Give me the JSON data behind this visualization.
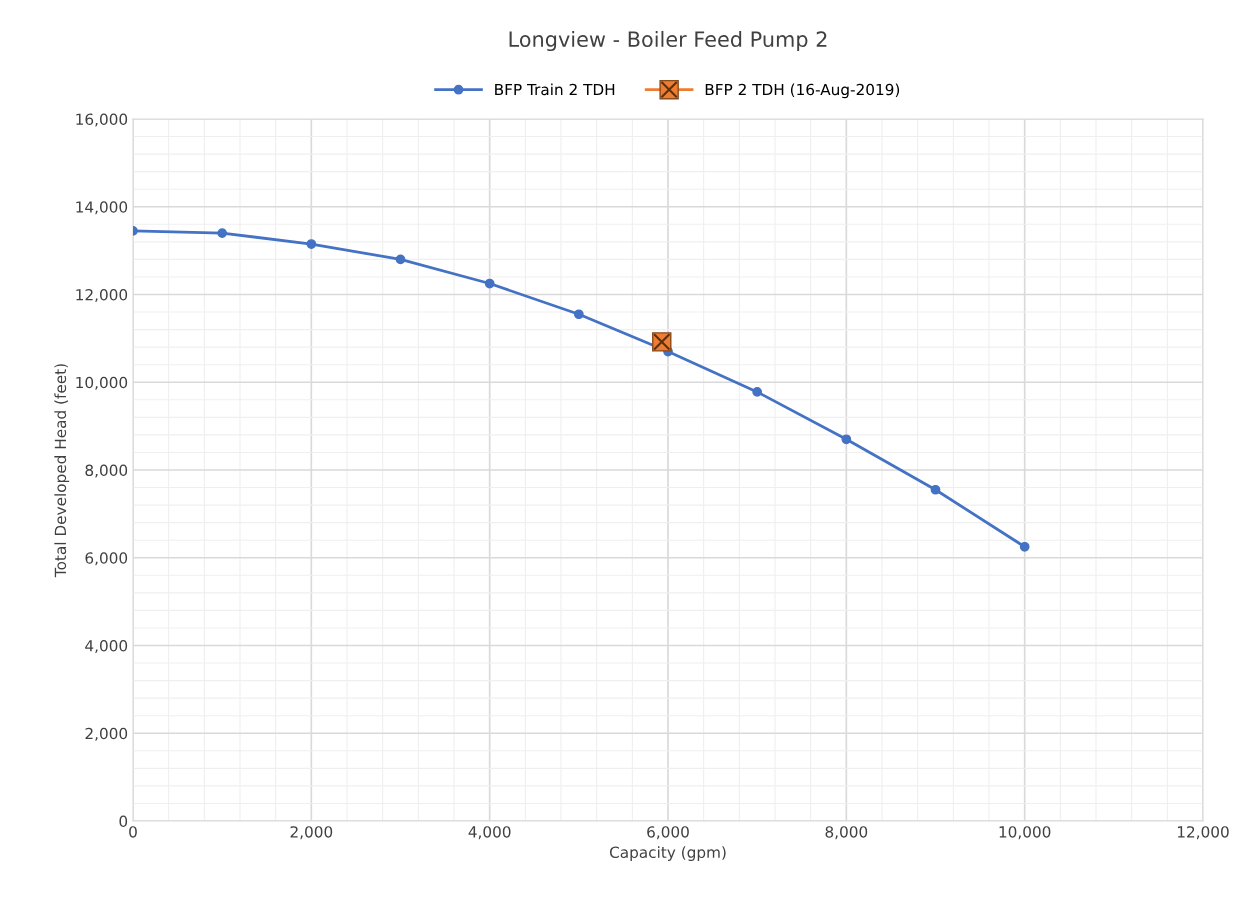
{
  "chart_data": {
    "type": "line",
    "title": "Longview - Boiler Feed Pump 2",
    "xlabel": "Capacity (gpm)",
    "ylabel": "Total Developed Head (feet)",
    "series": [
      {
        "name": "BFP Train 2 TDH",
        "color": "#4472c4",
        "marker": "circle",
        "x": [
          0,
          1000,
          2000,
          3000,
          4000,
          5000,
          6000,
          7000,
          8000,
          9000,
          10000
        ],
        "values": [
          13450,
          13400,
          13150,
          12800,
          12250,
          11550,
          10700,
          9780,
          8700,
          7550,
          6250
        ]
      },
      {
        "name": "BFP 2 TDH (16-Aug-2019)",
        "type": "scatter",
        "color": "#ed7d31",
        "marker": "square",
        "x": [
          5930
        ],
        "values": [
          10920
        ]
      }
    ],
    "xlim": [
      0,
      12000
    ],
    "xticks": [
      {
        "value": 0,
        "label": "0"
      },
      {
        "value": 2000,
        "label": "2,000"
      },
      {
        "value": 4000,
        "label": "4,000"
      },
      {
        "value": 6000,
        "label": "6,000"
      },
      {
        "value": 8000,
        "label": "8,000"
      },
      {
        "value": 10000,
        "label": "10,000"
      },
      {
        "value": 12000,
        "label": "12,000"
      }
    ],
    "ylim": [
      0,
      16000
    ],
    "yticks": [
      {
        "value": 0,
        "label": "0"
      },
      {
        "value": 2000,
        "label": "2,000"
      },
      {
        "value": 4000,
        "label": "4,000"
      },
      {
        "value": 6000,
        "label": "6,000"
      },
      {
        "value": 8000,
        "label": "8,000"
      },
      {
        "value": 10000,
        "label": "10,000"
      },
      {
        "value": 12000,
        "label": "12,000"
      },
      {
        "value": 14000,
        "label": "14,000"
      },
      {
        "value": 16000,
        "label": "16,000"
      }
    ],
    "grid": true,
    "legend": "top"
  }
}
